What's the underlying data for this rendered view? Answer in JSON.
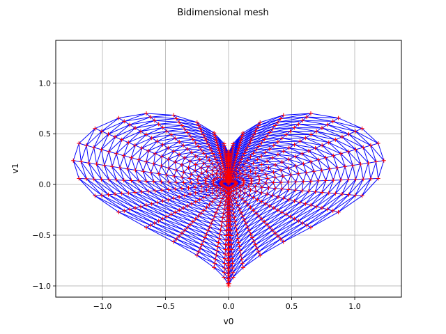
{
  "chart_data": {
    "type": "mesh",
    "title": "Bidimensional mesh",
    "xlabel": "v0",
    "ylabel": "v1",
    "xlim": [
      -1.37,
      1.37
    ],
    "ylim": [
      -1.11,
      1.42
    ],
    "grid": true,
    "xticks": [
      -1.0,
      -0.5,
      0.0,
      0.5,
      1.0
    ],
    "yticks": [
      -1.0,
      -0.5,
      0.0,
      0.5,
      1.0
    ],
    "xtick_labels": [
      "−1.0",
      "−0.5",
      "0.0",
      "0.5",
      "1.0"
    ],
    "ytick_labels": [
      "−1.0",
      "−0.5",
      "0.0",
      "0.5",
      "1.0"
    ],
    "mesh_shape": "heart",
    "rings": 20,
    "points_per_ring": 40,
    "edge_color": "#0000ff",
    "vertex_color": "#ff0000",
    "vertex_marker": "+"
  }
}
